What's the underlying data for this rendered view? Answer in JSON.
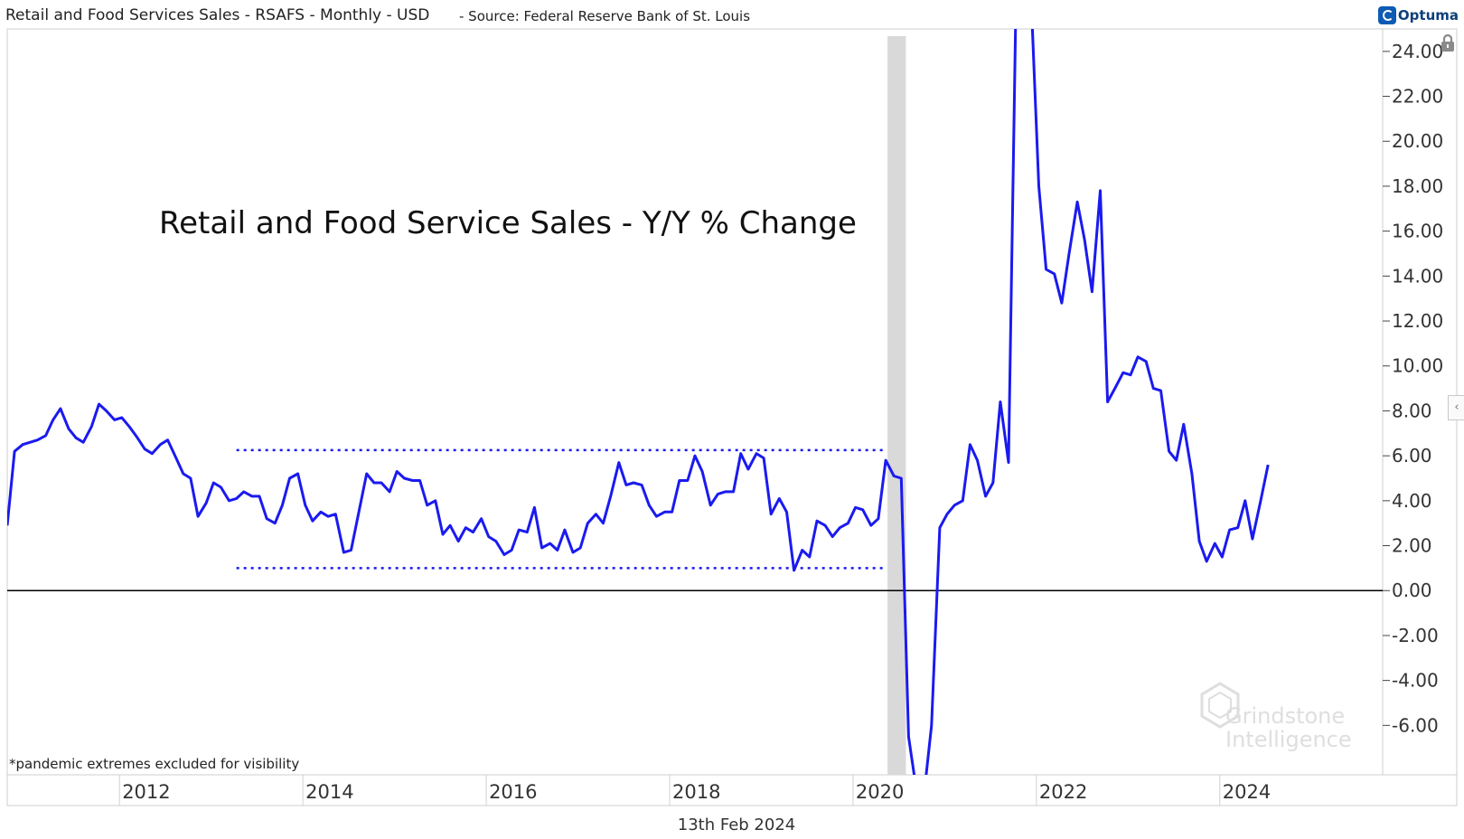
{
  "header": {
    "title": "Retail and Food Services Sales - RSAFS - Monthly - USD",
    "source": "- Source: Federal Reserve Bank of St. Louis",
    "brand": "Optuma"
  },
  "footer": {
    "date": "13th Feb 2024"
  },
  "watermark": {
    "line1": "Grindstone",
    "line2": "Intelligence"
  },
  "colors": {
    "series": "#1a1af0",
    "recession_band": "#d9d9d9",
    "zero_line": "#000000",
    "grid": "#dddddd",
    "accent": "#0d5bb5"
  },
  "icons": {
    "lock": "lock-icon",
    "collapse": "chevron-left-icon",
    "brand": "optuma-logo-icon"
  },
  "chart_data": {
    "type": "line",
    "title": "Retail and Food Service Sales - Y/Y % Change",
    "note": "*pandemic extremes excluded for visibility",
    "ylim": [
      -8.2,
      25.0
    ],
    "xlim": [
      2010.5,
      2025.5
    ],
    "y_ticks": [
      24,
      22,
      20,
      18,
      16,
      14,
      12,
      10,
      8,
      6,
      4,
      2,
      0,
      -2,
      -4,
      -6
    ],
    "y_tick_labels": [
      "24.00",
      "22.00",
      "20.00",
      "18.00",
      "16.00",
      "14.00",
      "12.00",
      "10.00",
      "8.00",
      "6.00",
      "4.00",
      "2.00",
      "0.00",
      "-2.00",
      "-4.00",
      "-6.00"
    ],
    "x_ticks": [
      2012,
      2014,
      2016,
      2018,
      2020,
      2022,
      2024
    ],
    "x_tick_labels": [
      "2012",
      "2014",
      "2016",
      "2018",
      "2020",
      "2022",
      "2024"
    ],
    "reference_lines": [
      {
        "y": 0,
        "style": "solid",
        "x_from": 2010.5,
        "x_to": 2025.5
      },
      {
        "y": 6.25,
        "style": "dotted",
        "x_from": 2013.0,
        "x_to": 2020.08
      },
      {
        "y": 1.0,
        "style": "dotted",
        "x_from": 2013.0,
        "x_to": 2020.08
      }
    ],
    "shaded_band": {
      "x_from": 2020.1,
      "x_to": 2020.3
    },
    "series": [
      {
        "values": [
          [
            2010.5,
            2.9
          ],
          [
            2010.58,
            6.2
          ],
          [
            2010.67,
            6.5
          ],
          [
            2010.75,
            6.6
          ],
          [
            2010.83,
            6.7
          ],
          [
            2010.92,
            6.9
          ],
          [
            2011.0,
            7.6
          ],
          [
            2011.08,
            8.1
          ],
          [
            2011.17,
            7.2
          ],
          [
            2011.25,
            6.8
          ],
          [
            2011.33,
            6.6
          ],
          [
            2011.42,
            7.3
          ],
          [
            2011.5,
            8.3
          ],
          [
            2011.58,
            8.0
          ],
          [
            2011.67,
            7.6
          ],
          [
            2011.75,
            7.7
          ],
          [
            2011.83,
            7.3
          ],
          [
            2011.92,
            6.8
          ],
          [
            2012.0,
            6.3
          ],
          [
            2012.08,
            6.1
          ],
          [
            2012.17,
            6.5
          ],
          [
            2012.25,
            6.7
          ],
          [
            2012.33,
            6.0
          ],
          [
            2012.42,
            5.2
          ],
          [
            2012.5,
            5.0
          ],
          [
            2012.58,
            3.3
          ],
          [
            2012.67,
            3.9
          ],
          [
            2012.75,
            4.8
          ],
          [
            2012.83,
            4.6
          ],
          [
            2012.92,
            4.0
          ],
          [
            2013.0,
            4.1
          ],
          [
            2013.08,
            4.4
          ],
          [
            2013.17,
            4.2
          ],
          [
            2013.25,
            4.2
          ],
          [
            2013.33,
            3.2
          ],
          [
            2013.42,
            3.0
          ],
          [
            2013.5,
            3.8
          ],
          [
            2013.58,
            5.0
          ],
          [
            2013.67,
            5.2
          ],
          [
            2013.75,
            3.8
          ],
          [
            2013.83,
            3.1
          ],
          [
            2013.92,
            3.5
          ],
          [
            2014.0,
            3.3
          ],
          [
            2014.08,
            3.4
          ],
          [
            2014.17,
            1.7
          ],
          [
            2014.25,
            1.8
          ],
          [
            2014.33,
            3.4
          ],
          [
            2014.42,
            5.2
          ],
          [
            2014.5,
            4.8
          ],
          [
            2014.58,
            4.8
          ],
          [
            2014.67,
            4.4
          ],
          [
            2014.75,
            5.3
          ],
          [
            2014.83,
            5.0
          ],
          [
            2014.92,
            4.9
          ],
          [
            2015.0,
            4.9
          ],
          [
            2015.08,
            3.8
          ],
          [
            2015.17,
            4.0
          ],
          [
            2015.25,
            2.5
          ],
          [
            2015.33,
            2.9
          ],
          [
            2015.42,
            2.2
          ],
          [
            2015.5,
            2.8
          ],
          [
            2015.58,
            2.6
          ],
          [
            2015.67,
            3.2
          ],
          [
            2015.75,
            2.4
          ],
          [
            2015.83,
            2.2
          ],
          [
            2015.92,
            1.6
          ],
          [
            2016.0,
            1.8
          ],
          [
            2016.08,
            2.7
          ],
          [
            2016.17,
            2.6
          ],
          [
            2016.25,
            3.7
          ],
          [
            2016.33,
            1.9
          ],
          [
            2016.42,
            2.1
          ],
          [
            2016.5,
            1.8
          ],
          [
            2016.58,
            2.7
          ],
          [
            2016.67,
            1.7
          ],
          [
            2016.75,
            1.9
          ],
          [
            2016.83,
            3.0
          ],
          [
            2016.92,
            3.4
          ],
          [
            2017.0,
            3.0
          ],
          [
            2017.08,
            4.2
          ],
          [
            2017.17,
            5.7
          ],
          [
            2017.25,
            4.7
          ],
          [
            2017.33,
            4.8
          ],
          [
            2017.42,
            4.7
          ],
          [
            2017.5,
            3.8
          ],
          [
            2017.58,
            3.3
          ],
          [
            2017.67,
            3.5
          ],
          [
            2017.75,
            3.5
          ],
          [
            2017.83,
            4.9
          ],
          [
            2017.92,
            4.9
          ],
          [
            2018.0,
            6.0
          ],
          [
            2018.08,
            5.3
          ],
          [
            2018.17,
            3.8
          ],
          [
            2018.25,
            4.3
          ],
          [
            2018.33,
            4.4
          ],
          [
            2018.42,
            4.4
          ],
          [
            2018.5,
            6.1
          ],
          [
            2018.58,
            5.4
          ],
          [
            2018.67,
            6.1
          ],
          [
            2018.75,
            5.9
          ],
          [
            2018.83,
            3.4
          ],
          [
            2018.92,
            4.1
          ],
          [
            2019.0,
            3.5
          ],
          [
            2019.08,
            0.9
          ],
          [
            2019.17,
            1.8
          ],
          [
            2019.25,
            1.5
          ],
          [
            2019.33,
            3.1
          ],
          [
            2019.42,
            2.9
          ],
          [
            2019.5,
            2.4
          ],
          [
            2019.58,
            2.8
          ],
          [
            2019.67,
            3.0
          ],
          [
            2019.75,
            3.7
          ],
          [
            2019.83,
            3.6
          ],
          [
            2019.92,
            2.9
          ],
          [
            2020.0,
            3.2
          ],
          [
            2020.08,
            5.8
          ],
          [
            2020.17,
            5.1
          ],
          [
            2020.25,
            5.0
          ],
          [
            2020.33,
            -6.5
          ],
          [
            2020.42,
            -9.0
          ],
          [
            2020.5,
            -9.0
          ],
          [
            2020.58,
            -6.0
          ],
          [
            2020.67,
            2.8
          ],
          [
            2020.75,
            3.4
          ],
          [
            2020.83,
            3.8
          ],
          [
            2020.92,
            4.0
          ],
          [
            2021.0,
            6.5
          ],
          [
            2021.08,
            5.8
          ],
          [
            2021.17,
            4.2
          ],
          [
            2021.25,
            4.8
          ],
          [
            2021.33,
            8.4
          ],
          [
            2021.42,
            5.7
          ],
          [
            2021.5,
            26.0
          ],
          [
            2021.58,
            29.0
          ],
          [
            2021.67,
            26.0
          ],
          [
            2021.75,
            18.0
          ],
          [
            2021.83,
            14.3
          ],
          [
            2021.92,
            14.1
          ],
          [
            2022.0,
            12.8
          ],
          [
            2022.08,
            15.0
          ],
          [
            2022.17,
            17.3
          ],
          [
            2022.25,
            15.6
          ],
          [
            2022.33,
            13.3
          ],
          [
            2022.42,
            17.8
          ],
          [
            2022.5,
            8.4
          ],
          [
            2022.58,
            9.0
          ],
          [
            2022.67,
            9.7
          ],
          [
            2022.75,
            9.6
          ],
          [
            2022.83,
            10.4
          ],
          [
            2022.92,
            10.2
          ],
          [
            2023.0,
            9.0
          ],
          [
            2023.08,
            8.9
          ],
          [
            2023.17,
            6.2
          ],
          [
            2023.25,
            5.8
          ],
          [
            2023.33,
            7.4
          ],
          [
            2023.42,
            5.2
          ],
          [
            2023.5,
            2.2
          ],
          [
            2023.58,
            1.3
          ],
          [
            2023.67,
            2.1
          ],
          [
            2023.75,
            1.5
          ],
          [
            2023.83,
            2.7
          ],
          [
            2023.92,
            2.8
          ],
          [
            2024.0,
            4.0
          ],
          [
            2024.08,
            2.3
          ],
          [
            2024.17,
            4.0
          ],
          [
            2024.25,
            5.6
          ]
        ]
      }
    ]
  }
}
